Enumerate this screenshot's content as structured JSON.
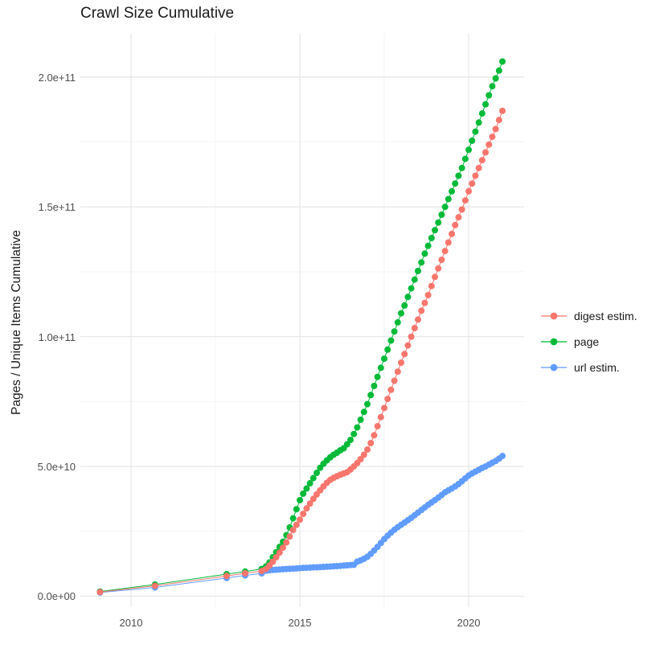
{
  "chart_data": {
    "type": "scatter",
    "title": "Crawl Size Cumulative",
    "xlabel": "",
    "ylabel": "Pages / Unique Items Cumulative",
    "x_tick_labels": [
      "2010",
      "2015",
      "2020"
    ],
    "x_ticks": [
      2010,
      2015,
      2020
    ],
    "x_minor_ticks": [
      2012.5,
      2017.5
    ],
    "y_tick_labels": [
      "0.0e+00",
      "5.0e+10",
      "1.0e+11",
      "1.5e+11",
      "2.0e+11"
    ],
    "y_ticks_billions": [
      0,
      50,
      100,
      150,
      200
    ],
    "y_minor_ticks_billions": [
      25,
      75,
      125,
      175
    ],
    "xlim": [
      2008.5,
      2021.643
    ],
    "ylim_billions": [
      -4.2,
      216.7
    ],
    "grid": true,
    "legend_position": "right",
    "value_unit": "items (values stored in billions, 1e9)",
    "point_radius": 4,
    "grid_major_color": "#e6e6e6",
    "grid_minor_color": "#f1f1f1",
    "series": [
      {
        "name": "digest estim.",
        "color": "#F8766D",
        "points": [
          [
            2009.08,
            1.6
          ],
          [
            2010.71,
            4.0
          ],
          [
            2012.83,
            7.8
          ],
          [
            2013.38,
            8.8
          ],
          [
            2013.87,
            9.7
          ],
          [
            2014.0,
            10.5
          ],
          [
            2014.1,
            11.8
          ],
          [
            2014.2,
            13.3
          ],
          [
            2014.3,
            15
          ],
          [
            2014.4,
            16.8
          ],
          [
            2014.5,
            18.7
          ],
          [
            2014.6,
            20.7
          ],
          [
            2014.7,
            23
          ],
          [
            2014.8,
            25.5
          ],
          [
            2014.9,
            27.5
          ],
          [
            2015.0,
            29.5
          ],
          [
            2015.1,
            31.7
          ],
          [
            2015.2,
            33.8
          ],
          [
            2015.3,
            35.7
          ],
          [
            2015.4,
            37.5
          ],
          [
            2015.5,
            39.2
          ],
          [
            2015.6,
            40.8
          ],
          [
            2015.7,
            42.3
          ],
          [
            2015.8,
            43.7
          ],
          [
            2015.9,
            44.8
          ],
          [
            2016.0,
            45.6
          ],
          [
            2016.1,
            46.2
          ],
          [
            2016.2,
            46.8
          ],
          [
            2016.3,
            47.3
          ],
          [
            2016.4,
            47.8
          ],
          [
            2016.5,
            48.8
          ],
          [
            2016.6,
            50
          ],
          [
            2016.7,
            51.3
          ],
          [
            2016.8,
            52.8
          ],
          [
            2016.9,
            54.5
          ],
          [
            2017.0,
            56.5
          ],
          [
            2017.1,
            59
          ],
          [
            2017.2,
            62
          ],
          [
            2017.3,
            65.5
          ],
          [
            2017.4,
            69
          ],
          [
            2017.5,
            72.5
          ],
          [
            2017.6,
            76
          ],
          [
            2017.7,
            79.5
          ],
          [
            2017.8,
            83
          ],
          [
            2017.9,
            86.5
          ],
          [
            2018.0,
            90
          ],
          [
            2018.1,
            93.3
          ],
          [
            2018.2,
            96.6
          ],
          [
            2018.3,
            100
          ],
          [
            2018.4,
            103.3
          ],
          [
            2018.5,
            106.6
          ],
          [
            2018.6,
            110
          ],
          [
            2018.7,
            113
          ],
          [
            2018.8,
            116
          ],
          [
            2018.9,
            119.5
          ],
          [
            2019.0,
            123
          ],
          [
            2019.1,
            126.3
          ],
          [
            2019.2,
            129.6
          ],
          [
            2019.3,
            133
          ],
          [
            2019.4,
            136.3
          ],
          [
            2019.5,
            139.6
          ],
          [
            2019.6,
            143
          ],
          [
            2019.7,
            146
          ],
          [
            2019.8,
            149
          ],
          [
            2019.9,
            152.5
          ],
          [
            2020.0,
            156
          ],
          [
            2020.1,
            159
          ],
          [
            2020.2,
            162
          ],
          [
            2020.3,
            165
          ],
          [
            2020.4,
            168
          ],
          [
            2020.5,
            171
          ],
          [
            2020.6,
            174
          ],
          [
            2020.7,
            177
          ],
          [
            2020.8,
            180
          ],
          [
            2020.9,
            183.5
          ],
          [
            2021.0,
            187
          ]
        ]
      },
      {
        "name": "page",
        "color": "#00BA38",
        "points": [
          [
            2009.08,
            1.8
          ],
          [
            2010.71,
            4.5
          ],
          [
            2012.83,
            8.5
          ],
          [
            2013.38,
            9.5
          ],
          [
            2013.87,
            10.5
          ],
          [
            2014.0,
            11.5
          ],
          [
            2014.1,
            13
          ],
          [
            2014.2,
            15
          ],
          [
            2014.3,
            17
          ],
          [
            2014.4,
            19
          ],
          [
            2014.5,
            21
          ],
          [
            2014.6,
            23.5
          ],
          [
            2014.7,
            26.5
          ],
          [
            2014.8,
            30
          ],
          [
            2014.9,
            33.5
          ],
          [
            2015.0,
            37
          ],
          [
            2015.1,
            39.5
          ],
          [
            2015.2,
            41.5
          ],
          [
            2015.3,
            43.5
          ],
          [
            2015.4,
            45.5
          ],
          [
            2015.5,
            47.5
          ],
          [
            2015.6,
            49.5
          ],
          [
            2015.7,
            51
          ],
          [
            2015.8,
            52.3
          ],
          [
            2015.9,
            53.5
          ],
          [
            2016.0,
            54.5
          ],
          [
            2016.1,
            55.3
          ],
          [
            2016.2,
            56.2
          ],
          [
            2016.3,
            57
          ],
          [
            2016.4,
            58.5
          ],
          [
            2016.5,
            60.2
          ],
          [
            2016.6,
            62.5
          ],
          [
            2016.7,
            65
          ],
          [
            2016.8,
            68
          ],
          [
            2016.9,
            71
          ],
          [
            2017.0,
            74
          ],
          [
            2017.1,
            77.5
          ],
          [
            2017.2,
            81
          ],
          [
            2017.3,
            84.5
          ],
          [
            2017.4,
            88
          ],
          [
            2017.5,
            91.5
          ],
          [
            2017.6,
            95
          ],
          [
            2017.7,
            98.5
          ],
          [
            2017.8,
            102
          ],
          [
            2017.9,
            105.5
          ],
          [
            2018.0,
            109
          ],
          [
            2018.1,
            112
          ],
          [
            2018.2,
            115.3
          ],
          [
            2018.3,
            118.6
          ],
          [
            2018.4,
            122
          ],
          [
            2018.5,
            125.3
          ],
          [
            2018.6,
            128.6
          ],
          [
            2018.7,
            132
          ],
          [
            2018.8,
            135
          ],
          [
            2018.9,
            138
          ],
          [
            2019.0,
            141
          ],
          [
            2019.1,
            144
          ],
          [
            2019.2,
            147
          ],
          [
            2019.3,
            150
          ],
          [
            2019.4,
            153
          ],
          [
            2019.5,
            156
          ],
          [
            2019.6,
            159
          ],
          [
            2019.7,
            162
          ],
          [
            2019.8,
            165
          ],
          [
            2019.9,
            168.5
          ],
          [
            2020.0,
            172
          ],
          [
            2020.1,
            175.5
          ],
          [
            2020.2,
            179
          ],
          [
            2020.3,
            182.5
          ],
          [
            2020.4,
            186
          ],
          [
            2020.5,
            189.5
          ],
          [
            2020.6,
            193
          ],
          [
            2020.7,
            196.5
          ],
          [
            2020.8,
            199.5
          ],
          [
            2020.9,
            202.5
          ],
          [
            2021.0,
            206
          ]
        ]
      },
      {
        "name": "url estim.",
        "color": "#619CFF",
        "points": [
          [
            2009.08,
            1.4
          ],
          [
            2010.71,
            3.4
          ],
          [
            2012.83,
            7.0
          ],
          [
            2013.38,
            8.0
          ],
          [
            2013.87,
            8.8
          ],
          [
            2014.0,
            9.8
          ],
          [
            2014.1,
            10.0
          ],
          [
            2014.2,
            10.1
          ],
          [
            2014.3,
            10.2
          ],
          [
            2014.4,
            10.3
          ],
          [
            2014.5,
            10.4
          ],
          [
            2014.6,
            10.5
          ],
          [
            2014.7,
            10.55
          ],
          [
            2014.8,
            10.6
          ],
          [
            2014.9,
            10.7
          ],
          [
            2015.0,
            10.8
          ],
          [
            2015.1,
            10.9
          ],
          [
            2015.2,
            10.95
          ],
          [
            2015.3,
            11.0
          ],
          [
            2015.4,
            11.1
          ],
          [
            2015.5,
            11.15
          ],
          [
            2015.6,
            11.2
          ],
          [
            2015.7,
            11.3
          ],
          [
            2015.8,
            11.35
          ],
          [
            2015.9,
            11.4
          ],
          [
            2016.0,
            11.5
          ],
          [
            2016.1,
            11.6
          ],
          [
            2016.2,
            11.7
          ],
          [
            2016.3,
            11.8
          ],
          [
            2016.4,
            11.9
          ],
          [
            2016.5,
            12.0
          ],
          [
            2016.6,
            12.1
          ],
          [
            2016.7,
            13.3
          ],
          [
            2016.8,
            13.8
          ],
          [
            2016.9,
            14.4
          ],
          [
            2017.0,
            15.2
          ],
          [
            2017.1,
            16.3
          ],
          [
            2017.2,
            17.6
          ],
          [
            2017.3,
            19
          ],
          [
            2017.4,
            20.5
          ],
          [
            2017.5,
            22
          ],
          [
            2017.6,
            23.3
          ],
          [
            2017.7,
            24.5
          ],
          [
            2017.8,
            25.6
          ],
          [
            2017.9,
            26.6
          ],
          [
            2018.0,
            27.5
          ],
          [
            2018.1,
            28.4
          ],
          [
            2018.2,
            29.3
          ],
          [
            2018.3,
            30.2
          ],
          [
            2018.4,
            31.2
          ],
          [
            2018.5,
            32.2
          ],
          [
            2018.6,
            33.2
          ],
          [
            2018.7,
            34.2
          ],
          [
            2018.8,
            35.2
          ],
          [
            2018.9,
            36.1
          ],
          [
            2019.0,
            37
          ],
          [
            2019.1,
            38
          ],
          [
            2019.2,
            39
          ],
          [
            2019.3,
            40
          ],
          [
            2019.4,
            40.8
          ],
          [
            2019.5,
            41.5
          ],
          [
            2019.6,
            42.3
          ],
          [
            2019.7,
            43.2
          ],
          [
            2019.8,
            44.3
          ],
          [
            2019.9,
            45.4
          ],
          [
            2020.0,
            46.5
          ],
          [
            2020.1,
            47.3
          ],
          [
            2020.2,
            48
          ],
          [
            2020.3,
            48.7
          ],
          [
            2020.4,
            49.4
          ],
          [
            2020.5,
            50
          ],
          [
            2020.6,
            50.7
          ],
          [
            2020.7,
            51.4
          ],
          [
            2020.8,
            52.1
          ],
          [
            2020.9,
            53
          ],
          [
            2021.0,
            54
          ]
        ]
      }
    ]
  }
}
